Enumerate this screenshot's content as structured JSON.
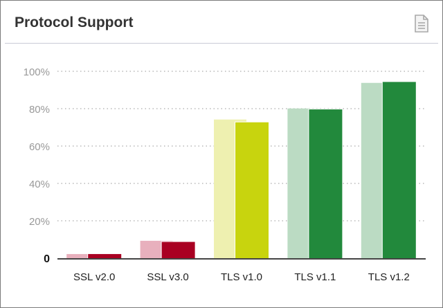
{
  "header": {
    "title": "Protocol Support",
    "export_icon": "document-icon"
  },
  "chart_data": {
    "type": "bar",
    "categories": [
      "SSL v2.0",
      "SSL v3.0",
      "TLS v1.0",
      "TLS v1.1",
      "TLS v1.2"
    ],
    "series": [
      {
        "values": [
          2.2,
          9.3,
          74.2,
          80.1,
          93.8
        ],
        "colors": [
          "#e8b0bd",
          "#e8b0bd",
          "#eef0b0",
          "#bbdbc3",
          "#bbdbc3"
        ]
      },
      {
        "values": [
          2.2,
          8.7,
          72.7,
          79.6,
          94.3
        ],
        "colors": [
          "#a90022",
          "#a90022",
          "#c8d40e",
          "#22893c",
          "#22893c"
        ]
      }
    ],
    "yticks": [
      "0",
      "20%",
      "40%",
      "60%",
      "80%",
      "100%"
    ],
    "ylim": [
      0,
      100
    ],
    "grid": true,
    "xlabel": "",
    "ylabel": ""
  }
}
